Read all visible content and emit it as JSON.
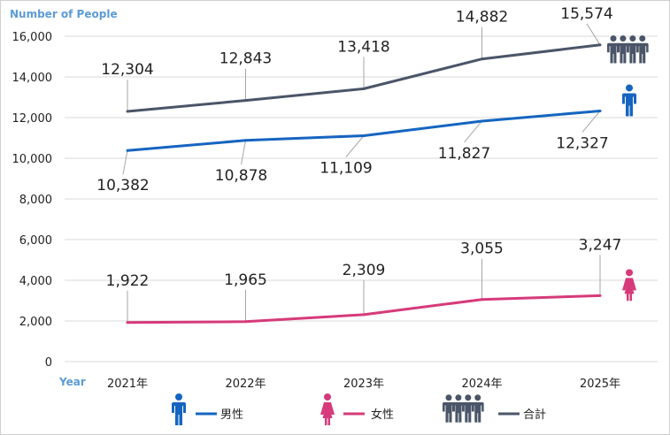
{
  "chart_data": {
    "type": "line",
    "ylabel": "Number of People",
    "xlabel": "Year",
    "categories": [
      "2021年",
      "2022年",
      "2023年",
      "2024年",
      "2025年"
    ],
    "ylim": [
      0,
      16000
    ],
    "yticks": [
      0,
      2000,
      4000,
      6000,
      8000,
      10000,
      12000,
      14000,
      16000
    ],
    "ytick_labels": [
      "0",
      "2,000",
      "4,000",
      "6,000",
      "8,000",
      "10,000",
      "12,000",
      "14,000",
      "16,000"
    ],
    "grid": true,
    "legend_position": "bottom",
    "series": [
      {
        "name": "男性",
        "color": "#1565c0",
        "icon": "male-person-icon",
        "values": [
          10382,
          10878,
          11109,
          11827,
          12327
        ],
        "labels": [
          "10,382",
          "10,878",
          "11,109",
          "11,827",
          "12,327"
        ]
      },
      {
        "name": "女性",
        "color": "#d63a7a",
        "icon": "female-person-icon",
        "values": [
          1922,
          1965,
          2309,
          3055,
          3247
        ],
        "labels": [
          "1,922",
          "1,965",
          "2,309",
          "3,055",
          "3,247"
        ]
      },
      {
        "name": "合計",
        "color": "#4a5568",
        "icon": "people-group-icon",
        "values": [
          12304,
          12843,
          13418,
          14882,
          15574
        ],
        "labels": [
          "12,304",
          "12,843",
          "13,418",
          "14,882",
          "15,574"
        ]
      }
    ]
  }
}
